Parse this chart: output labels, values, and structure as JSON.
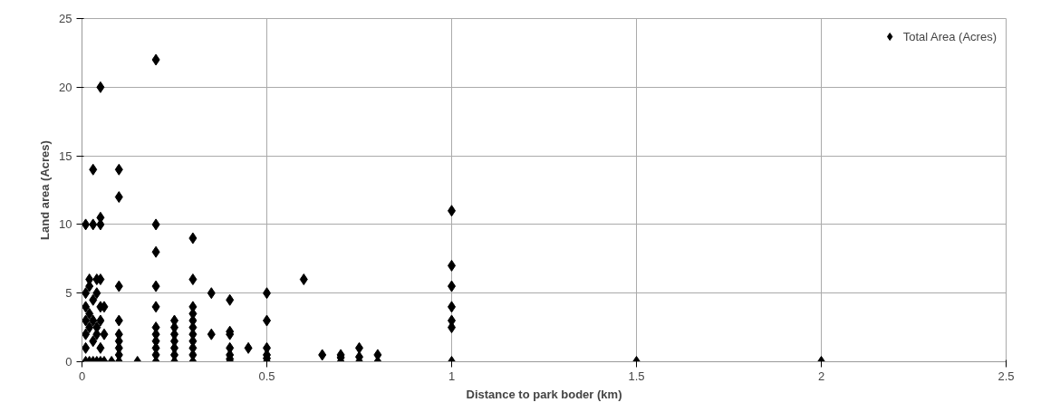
{
  "chart_data": {
    "type": "scatter",
    "xlabel": "Distance to park boder (km)",
    "ylabel": "Land area (Acres)",
    "series": [
      {
        "name": "Total Area (Acres)",
        "color": "#000000",
        "x": [
          0.01,
          0.01,
          0.01,
          0.01,
          0.01,
          0.01,
          0.01,
          0.02,
          0.02,
          0.02,
          0.02,
          0.02,
          0.03,
          0.03,
          0.03,
          0.03,
          0.03,
          0.03,
          0.04,
          0.04,
          0.04,
          0.04,
          0.04,
          0.05,
          0.05,
          0.05,
          0.05,
          0.05,
          0.05,
          0.05,
          0.05,
          0.06,
          0.06,
          0.06,
          0.08,
          0.1,
          0.1,
          0.1,
          0.1,
          0.1,
          0.1,
          0.1,
          0.1,
          0.1,
          0.15,
          0.2,
          0.2,
          0.2,
          0.2,
          0.2,
          0.2,
          0.2,
          0.2,
          0.2,
          0.2,
          0.2,
          0.25,
          0.25,
          0.25,
          0.25,
          0.25,
          0.25,
          0.25,
          0.3,
          0.3,
          0.3,
          0.3,
          0.3,
          0.3,
          0.3,
          0.3,
          0.3,
          0.3,
          0.3,
          0.35,
          0.35,
          0.4,
          0.4,
          0.4,
          0.4,
          0.4,
          0.4,
          0.4,
          0.45,
          0.5,
          0.5,
          0.5,
          0.5,
          0.5,
          0.5,
          0.6,
          0.65,
          0.7,
          0.7,
          0.7,
          0.75,
          0.75,
          0.75,
          0.8,
          0.8,
          1,
          1,
          1,
          1,
          1,
          1,
          1,
          1.5,
          2
        ],
        "values": [
          0,
          1,
          2,
          3,
          4,
          5,
          10,
          0,
          2.5,
          3.5,
          5.5,
          6,
          14,
          0,
          1.5,
          3,
          4.5,
          10,
          0,
          2,
          2.5,
          6,
          5,
          20,
          10.5,
          10,
          0,
          1,
          4,
          6,
          3,
          0,
          2,
          4,
          0,
          14,
          12,
          5.5,
          3,
          2,
          1.5,
          1,
          0.5,
          0,
          0,
          22,
          10,
          8,
          5.5,
          4,
          2.5,
          2,
          1.5,
          1,
          0.5,
          0,
          3,
          2.5,
          2,
          1.5,
          1,
          0.5,
          0,
          9,
          6,
          4,
          3.5,
          3,
          2.5,
          2,
          1.5,
          1,
          0.5,
          0,
          5,
          2,
          4.5,
          2.2,
          2,
          1,
          0.5,
          0.2,
          0,
          1,
          5,
          3,
          1,
          0.5,
          0.25,
          0,
          6,
          0.5,
          0.5,
          0.3,
          0,
          1,
          0.35,
          0,
          0.5,
          0,
          11,
          7,
          5.5,
          4,
          3,
          2.5,
          0,
          0,
          0
        ]
      }
    ],
    "marker": "diamond",
    "xlim": [
      0,
      2.5
    ],
    "ylim": [
      0,
      25
    ],
    "xticks": [
      0,
      0.5,
      1,
      1.5,
      2,
      2.5
    ],
    "yticks": [
      0,
      5,
      10,
      15,
      20,
      25
    ],
    "grid": true,
    "legend": "top right"
  }
}
